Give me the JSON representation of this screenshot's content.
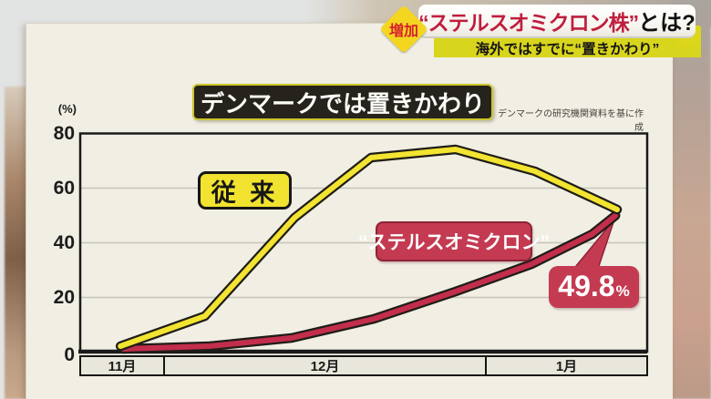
{
  "header": {
    "badge": "増加",
    "title_em": "“ステルスオミクロン株”",
    "title_rest": "とは?",
    "subtitle": "海外ではすでに“置きかわり”"
  },
  "chart": {
    "title": "デンマークでは置きかわり",
    "attribution": "デンマークの研究機関資料を基に作成",
    "unit": "(%)",
    "y_ticks": [
      "80",
      "60",
      "40",
      "20",
      "0"
    ],
    "x_labels": [
      "11月",
      "12月",
      "1月"
    ],
    "series1_label": "従 来",
    "series2_label": "“ステルスオミクロン”",
    "callout": {
      "value": "49.8",
      "unit": "%"
    }
  },
  "chart_data": {
    "type": "line",
    "title": "デンマークでは置きかわり",
    "source_note": "デンマークの研究機関資料を基に作成",
    "ylabel": "(%)",
    "ylim": [
      0,
      80
    ],
    "y_ticks": [
      0,
      20,
      40,
      60,
      80
    ],
    "grid": "horizontal",
    "x_bands": [
      {
        "label": "11月",
        "span": [
          0,
          0.148
        ]
      },
      {
        "label": "12月",
        "span": [
          0.148,
          0.716
        ]
      },
      {
        "label": "1月",
        "span": [
          0.716,
          1
        ]
      }
    ],
    "outline_color": "#201d18",
    "series": [
      {
        "key": "conventional",
        "name": "従来",
        "color": "#f2e430",
        "points": [
          [
            0.071,
            2
          ],
          [
            0.22,
            13
          ],
          [
            0.378,
            49
          ],
          [
            0.513,
            71
          ],
          [
            0.662,
            74
          ],
          [
            0.802,
            66
          ],
          [
            0.947,
            52
          ]
        ]
      },
      {
        "key": "stealth-omicron",
        "name": "“ステルスオミクロン”",
        "color": "#c22e4b",
        "points": [
          [
            0.076,
            1
          ],
          [
            0.228,
            2
          ],
          [
            0.373,
            5
          ],
          [
            0.518,
            12
          ],
          [
            0.662,
            22
          ],
          [
            0.796,
            32
          ],
          [
            0.903,
            43
          ],
          [
            0.944,
            49.8
          ]
        ],
        "end_label": "49.8%"
      }
    ],
    "annotation": {
      "text": "49.8%",
      "series": "stealth-omicron",
      "position": "end"
    }
  }
}
